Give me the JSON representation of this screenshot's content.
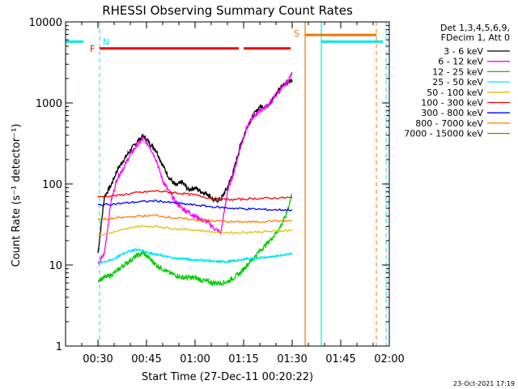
{
  "chart_data": {
    "type": "line",
    "title": "RHESSI Observing Summary Count Rates",
    "xlabel": "Start Time (27-Dec-11 00:20:22)",
    "ylabel": "Count Rate (s⁻¹ detector⁻¹)",
    "yscale": "log",
    "ylim": [
      1,
      10000
    ],
    "xlim_minutes_after_0020": [
      0,
      100
    ],
    "x_unit": "minutes after 00:20:22 (27-Dec-11)",
    "x_ticks": [
      {
        "label": "00:30",
        "t": 10
      },
      {
        "label": "00:45",
        "t": 25
      },
      {
        "label": "01:00",
        "t": 40
      },
      {
        "label": "01:15",
        "t": 55
      },
      {
        "label": "01:30",
        "t": 70
      },
      {
        "label": "01:45",
        "t": 85
      },
      {
        "label": "02:00",
        "t": 100
      }
    ],
    "y_ticks": [
      {
        "label": "1",
        "v": 1
      },
      {
        "label": "10",
        "v": 10
      },
      {
        "label": "100",
        "v": 100
      },
      {
        "label": "1000",
        "v": 1000
      },
      {
        "label": "10000",
        "v": 10000
      }
    ],
    "legend": {
      "placement": "right",
      "header": [
        "Det 1,3,4,5,6,9,",
        "FDecim 1, Att 0"
      ],
      "entries": [
        {
          "label": "3 - 6 keV",
          "color": "#000000"
        },
        {
          "label": "6 - 12 keV",
          "color": "#ff00ff"
        },
        {
          "label": "12 - 25 keV",
          "color": "#00cc00"
        },
        {
          "label": "25 - 50 keV",
          "color": "#00e5ee"
        },
        {
          "label": "50 - 100 keV",
          "color": "#e0c000"
        },
        {
          "label": "100 - 300 keV",
          "color": "#ff0000"
        },
        {
          "label": "300 - 800 keV",
          "color": "#0000ff"
        },
        {
          "label": "800 - 7000 keV",
          "color": "#ff8000"
        },
        {
          "label": "7000 - 15000 keV",
          "color": "#808000"
        }
      ]
    },
    "series": [
      {
        "name": "3 - 6 keV",
        "color": "#000000",
        "t": [
          10,
          12,
          14,
          16,
          18,
          20,
          22,
          24,
          26,
          28,
          30,
          32,
          34,
          36,
          38,
          40,
          42,
          44,
          46,
          48,
          50,
          52,
          54,
          56,
          58,
          60,
          62,
          64,
          66,
          68,
          70
        ],
        "v": [
          14,
          70,
          95,
          150,
          200,
          260,
          330,
          390,
          320,
          260,
          170,
          120,
          95,
          105,
          85,
          90,
          80,
          75,
          62,
          65,
          90,
          150,
          300,
          500,
          700,
          900,
          900,
          1100,
          1500,
          1800,
          1900
        ]
      },
      {
        "name": "6 - 12 keV",
        "color": "#ff00ff",
        "t": [
          10,
          12,
          14,
          16,
          18,
          20,
          22,
          24,
          26,
          28,
          30,
          32,
          34,
          36,
          38,
          40,
          42,
          44,
          46,
          48,
          50,
          52,
          54,
          56,
          58,
          60,
          62,
          64,
          66,
          68,
          70
        ],
        "v": [
          10,
          14,
          60,
          120,
          160,
          230,
          300,
          360,
          290,
          200,
          110,
          80,
          60,
          50,
          45,
          40,
          36,
          34,
          28,
          25,
          80,
          140,
          280,
          500,
          680,
          800,
          900,
          1100,
          1400,
          1700,
          2300
        ]
      },
      {
        "name": "12 - 25 keV",
        "color": "#00cc00",
        "t": [
          10,
          12,
          14,
          16,
          18,
          20,
          22,
          24,
          26,
          28,
          30,
          32,
          34,
          36,
          38,
          40,
          42,
          44,
          46,
          48,
          50,
          52,
          54,
          56,
          58,
          60,
          62,
          64,
          66,
          68,
          70
        ],
        "v": [
          6.5,
          7,
          7.5,
          8.5,
          10,
          11.5,
          13,
          14,
          12,
          10,
          9,
          8,
          7.5,
          7,
          7,
          7,
          6.5,
          6.2,
          6,
          6,
          6.2,
          7,
          8,
          10,
          12,
          15,
          18,
          22,
          28,
          40,
          75
        ]
      },
      {
        "name": "25 - 50 keV",
        "color": "#00e5ee",
        "t": [
          10,
          12,
          14,
          16,
          18,
          20,
          22,
          24,
          26,
          28,
          30,
          32,
          34,
          36,
          38,
          40,
          42,
          44,
          46,
          48,
          50,
          52,
          54,
          56,
          58,
          60,
          62,
          64,
          66,
          68,
          70
        ],
        "v": [
          10.5,
          11,
          11.5,
          12.5,
          14,
          15,
          15.5,
          15,
          14,
          13.5,
          13,
          12.5,
          12,
          12,
          11.8,
          11.5,
          11.5,
          11.3,
          11,
          11,
          11,
          11.2,
          11.5,
          12,
          12,
          12.2,
          12.5,
          12.8,
          13,
          13.5,
          14
        ]
      },
      {
        "name": "50 - 100 keV",
        "color": "#e0c000",
        "t": [
          10,
          16,
          22,
          28,
          34,
          40,
          46,
          52,
          58,
          64,
          70
        ],
        "v": [
          23,
          26,
          30,
          30,
          28,
          27,
          25.5,
          25,
          25.5,
          26,
          27
        ]
      },
      {
        "name": "100 - 300 keV",
        "color": "#ff0000",
        "t": [
          10,
          16,
          22,
          28,
          34,
          40,
          46,
          52,
          58,
          64,
          70
        ],
        "v": [
          69,
          72,
          78,
          82,
          78,
          73,
          65,
          64,
          66,
          67,
          68
        ]
      },
      {
        "name": "300 - 800 keV",
        "color": "#0000ff",
        "t": [
          10,
          16,
          22,
          28,
          34,
          40,
          46,
          52,
          58,
          64,
          70
        ],
        "v": [
          55,
          57,
          60,
          62,
          58,
          55,
          52,
          50,
          49,
          48,
          48
        ]
      },
      {
        "name": "800 - 7000 keV",
        "color": "#ff8000",
        "t": [
          10,
          16,
          22,
          28,
          34,
          40,
          46,
          52,
          58,
          64,
          70
        ],
        "v": [
          36,
          38,
          40,
          41,
          38,
          36,
          35,
          34,
          34,
          35,
          35
        ]
      },
      {
        "name": "7000 - 15000 keV",
        "color": "#808000",
        "t": [
          10,
          70
        ],
        "v": [
          1,
          1
        ]
      }
    ],
    "annotations": {
      "night": {
        "label": "N",
        "color": "#00e5ee",
        "spans": [
          {
            "t_start": 0,
            "t_end": 5.5,
            "level": 5700,
            "dashed_end": 10.5
          },
          {
            "t_start": 79,
            "t_end": 98,
            "level": 5700,
            "dashed_end": 99
          }
        ],
        "solid_lines_t": [
          0,
          79
        ],
        "dashed_lines_t": [
          10.5,
          99
        ]
      },
      "flare": {
        "label": "F",
        "color": "#ee0000",
        "spans": [
          {
            "t_start": 10.5,
            "t_end": 53.5,
            "level": 4700
          },
          {
            "t_start": 55,
            "t_end": 69.5,
            "level": 4700
          }
        ]
      },
      "saa": {
        "label": "S",
        "color": "#ee7700",
        "spans": [
          {
            "t_start": 74,
            "t_end": 96,
            "level": 6900
          }
        ],
        "solid_lines_t": [
          74
        ],
        "dashed_lines_t": [
          96
        ]
      }
    },
    "grid": false
  },
  "footer": {
    "timestamp": "23-Oct-2021 17:19"
  }
}
